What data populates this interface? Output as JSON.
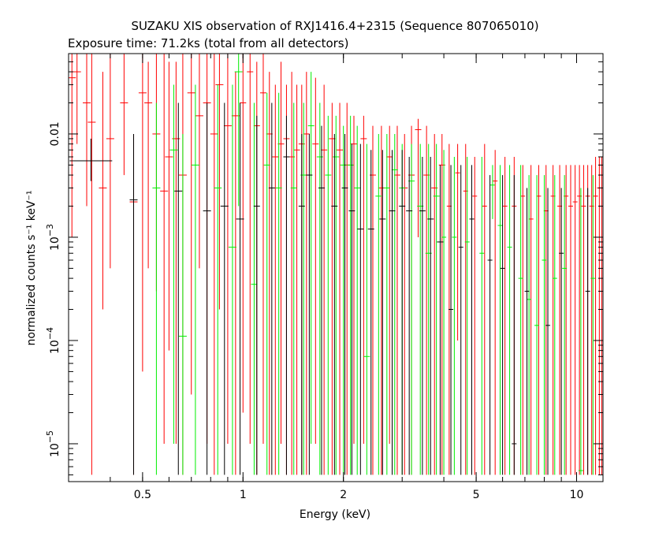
{
  "chart_data": {
    "type": "scatter",
    "title": "SUZAKU XIS observation of RXJ1416.4+2315 (Sequence 807065010)",
    "subtitle": "Exposure time: 71.2ks (total from all detectors)",
    "xlabel": "Energy (keV)",
    "ylabel": "normalized counts s⁻¹ keV⁻¹",
    "x_scale": "log",
    "y_scale": "log",
    "xlim": [
      0.3,
      12
    ],
    "ylim": [
      4.3e-06,
      0.06
    ],
    "x_ticks": [
      {
        "value": 0.5,
        "label": "0.5"
      },
      {
        "value": 1,
        "label": "1"
      },
      {
        "value": 2,
        "label": "2"
      },
      {
        "value": 5,
        "label": "5"
      },
      {
        "value": 10,
        "label": "10"
      }
    ],
    "y_ticks": [
      {
        "value": 0.01,
        "base": "0.01",
        "exp": ""
      },
      {
        "value": 0.001,
        "base": "10",
        "exp": "−3"
      },
      {
        "value": 0.0001,
        "base": "10",
        "exp": "−4"
      },
      {
        "value": 1e-05,
        "base": "10",
        "exp": "−5"
      }
    ],
    "grid": false,
    "legend": "none",
    "series": [
      {
        "color": "#ff0000",
        "points": [
          [
            0.307,
            0.035,
            0.001,
            0.06
          ],
          [
            0.318,
            0.04,
            0.008,
            0.06
          ],
          [
            0.34,
            0.02,
            0.002,
            0.06
          ],
          [
            0.352,
            0.013,
            5e-06,
            0.06
          ],
          [
            0.38,
            0.003,
            0.0002,
            0.04
          ],
          [
            0.4,
            0.009,
            0.0005,
            0.06
          ],
          [
            0.44,
            0.02,
            0.004,
            0.06
          ],
          [
            0.47,
            0.0022,
            5e-06,
            0.01
          ],
          [
            0.5,
            0.025,
            5e-05,
            0.06
          ],
          [
            0.52,
            0.02,
            0.0005,
            0.05
          ],
          [
            0.55,
            0.01,
            0.0003,
            0.06
          ],
          [
            0.58,
            0.0028,
            1e-05,
            0.06
          ],
          [
            0.6,
            0.006,
            8e-05,
            0.05
          ],
          [
            0.63,
            0.009,
            1e-05,
            0.05
          ],
          [
            0.66,
            0.004,
            5e-06,
            0.06
          ],
          [
            0.7,
            0.025,
            3e-05,
            0.06
          ],
          [
            0.74,
            0.015,
            0.0005,
            0.06
          ],
          [
            0.78,
            0.02,
            1e-05,
            0.06
          ],
          [
            0.82,
            0.01,
            5e-06,
            0.06
          ],
          [
            0.85,
            0.03,
            0.0002,
            0.06
          ],
          [
            0.9,
            0.012,
            1e-05,
            0.06
          ],
          [
            0.95,
            0.015,
            5e-06,
            0.04
          ],
          [
            1.0,
            0.02,
            2e-05,
            0.06
          ],
          [
            1.05,
            0.04,
            1e-05,
            0.06
          ],
          [
            1.1,
            0.012,
            5e-06,
            0.05
          ],
          [
            1.15,
            0.025,
            1e-05,
            0.06
          ],
          [
            1.2,
            0.01,
            5e-06,
            0.04
          ],
          [
            1.25,
            0.006,
            5e-06,
            0.03
          ],
          [
            1.3,
            0.008,
            1e-05,
            0.05
          ],
          [
            1.35,
            0.009,
            5e-06,
            0.03
          ],
          [
            1.4,
            0.006,
            5e-06,
            0.04
          ],
          [
            1.45,
            0.007,
            5e-06,
            0.03
          ],
          [
            1.5,
            0.008,
            5e-06,
            0.03
          ],
          [
            1.55,
            0.01,
            5e-06,
            0.04
          ],
          [
            1.65,
            0.008,
            1e-05,
            0.035
          ],
          [
            1.75,
            0.007,
            5e-06,
            0.03
          ],
          [
            1.85,
            0.009,
            5e-06,
            0.02
          ],
          [
            1.95,
            0.007,
            5e-06,
            0.02
          ],
          [
            2.05,
            0.005,
            5e-06,
            0.02
          ],
          [
            2.15,
            0.008,
            1e-05,
            0.015
          ],
          [
            2.3,
            0.009,
            1e-05,
            0.015
          ],
          [
            2.45,
            0.004,
            5e-06,
            0.012
          ],
          [
            2.6,
            0.003,
            5e-06,
            0.012
          ],
          [
            2.75,
            0.006,
            1e-05,
            0.012
          ],
          [
            2.9,
            0.004,
            5e-06,
            0.012
          ],
          [
            3.05,
            0.003,
            5e-06,
            0.01
          ],
          [
            3.2,
            0.004,
            5e-06,
            0.012
          ],
          [
            3.35,
            0.011,
            0.001,
            0.014
          ],
          [
            3.55,
            0.004,
            5e-06,
            0.012
          ],
          [
            3.75,
            0.003,
            5e-06,
            0.01
          ],
          [
            3.95,
            0.005,
            5e-06,
            0.01
          ],
          [
            4.15,
            0.002,
            5e-06,
            0.008
          ],
          [
            4.4,
            0.0042,
            0.0001,
            0.008
          ],
          [
            4.65,
            0.0028,
            5e-06,
            0.008
          ],
          [
            4.95,
            0.0025,
            5e-06,
            0.006
          ],
          [
            5.3,
            0.002,
            5e-06,
            0.008
          ],
          [
            5.7,
            0.0035,
            5e-06,
            0.007
          ],
          [
            6.1,
            0.002,
            5e-06,
            0.006
          ],
          [
            6.5,
            0.002,
            5e-06,
            0.006
          ],
          [
            6.9,
            0.0025,
            5e-06,
            0.005
          ],
          [
            7.3,
            0.0015,
            5e-06,
            0.005
          ],
          [
            7.7,
            0.0025,
            5e-06,
            0.005
          ],
          [
            8.1,
            0.0018,
            5e-06,
            0.005
          ],
          [
            8.5,
            0.0025,
            5e-06,
            0.005
          ],
          [
            8.9,
            0.002,
            5e-06,
            0.005
          ],
          [
            9.3,
            0.0025,
            5e-06,
            0.005
          ],
          [
            9.6,
            0.002,
            5e-06,
            0.005
          ],
          [
            9.9,
            0.0022,
            5e-06,
            0.005
          ],
          [
            10.2,
            0.0025,
            5e-06,
            0.005
          ],
          [
            10.5,
            0.002,
            5e-06,
            0.005
          ],
          [
            10.8,
            0.0025,
            5e-06,
            0.005
          ],
          [
            11.1,
            0.002,
            5e-06,
            0.005
          ],
          [
            11.4,
            0.0025,
            5e-06,
            0.006
          ],
          [
            11.7,
            0.003,
            5e-06,
            0.006
          ],
          [
            11.9,
            0.002,
            5e-06,
            0.006
          ]
        ]
      },
      {
        "color": "#00ee00",
        "points": [
          [
            0.55,
            0.003,
            5e-06,
            0.02
          ],
          [
            0.62,
            0.007,
            1e-05,
            0.03
          ],
          [
            0.66,
            0.00011,
            5e-06,
            0.01
          ],
          [
            0.72,
            0.005,
            5e-06,
            0.03
          ],
          [
            0.84,
            0.003,
            5e-06,
            0.03
          ],
          [
            0.93,
            0.0008,
            5e-06,
            0.03
          ],
          [
            0.97,
            0.04,
            0.002,
            0.06
          ],
          [
            1.08,
            0.00035,
            5e-06,
            0.02
          ],
          [
            1.18,
            0.005,
            5e-06,
            0.025
          ],
          [
            1.28,
            0.003,
            5e-06,
            0.025
          ],
          [
            1.42,
            0.003,
            5e-06,
            0.02
          ],
          [
            1.52,
            0.004,
            5e-06,
            0.02
          ],
          [
            1.6,
            0.012,
            1e-05,
            0.04
          ],
          [
            1.7,
            0.006,
            5e-06,
            0.02
          ],
          [
            1.8,
            0.004,
            5e-06,
            0.015
          ],
          [
            1.9,
            0.006,
            5e-06,
            0.015
          ],
          [
            2.0,
            0.005,
            5e-06,
            0.012
          ],
          [
            2.1,
            0.005,
            5e-06,
            0.015
          ],
          [
            2.2,
            0.003,
            5e-06,
            0.012
          ],
          [
            2.35,
            7e-05,
            5e-06,
            0.008
          ],
          [
            2.55,
            0.0025,
            5e-06,
            0.01
          ],
          [
            2.7,
            0.003,
            5e-06,
            0.01
          ],
          [
            2.85,
            0.0045,
            5e-06,
            0.01
          ],
          [
            3.0,
            0.003,
            5e-06,
            0.008
          ],
          [
            3.2,
            0.0035,
            5e-06,
            0.008
          ],
          [
            3.4,
            0.002,
            5e-06,
            0.008
          ],
          [
            3.6,
            0.0007,
            5e-06,
            0.008
          ],
          [
            3.8,
            0.0025,
            5e-06,
            0.008
          ],
          [
            4.0,
            0.001,
            5e-06,
            0.007
          ],
          [
            4.3,
            0.001,
            5e-06,
            0.006
          ],
          [
            4.7,
            0.0009,
            5e-06,
            0.006
          ],
          [
            5.2,
            0.0007,
            5e-06,
            0.006
          ],
          [
            5.6,
            0.0032,
            0.0015,
            0.005
          ],
          [
            5.9,
            0.0013,
            5e-06,
            0.005
          ],
          [
            6.3,
            0.0008,
            5e-06,
            0.005
          ],
          [
            6.8,
            0.0004,
            5e-06,
            0.005
          ],
          [
            7.2,
            0.00025,
            5e-06,
            0.004
          ],
          [
            7.6,
            0.00014,
            5e-06,
            0.004
          ],
          [
            8.0,
            0.0006,
            5e-06,
            0.004
          ],
          [
            8.6,
            0.0004,
            5e-06,
            0.004
          ],
          [
            9.2,
            0.0005,
            5e-06,
            0.004
          ],
          [
            10.3,
            5.5e-06,
            5e-06,
            0.003
          ],
          [
            11.2,
            0.0004,
            5e-06,
            0.004
          ]
        ]
      },
      {
        "color": "#000000",
        "points": [
          [
            0.35,
            0.0055,
            0.0035,
            0.009
          ],
          [
            0.47,
            0.0023,
            5e-06,
            0.01
          ],
          [
            0.64,
            0.0028,
            5e-06,
            0.02
          ],
          [
            0.78,
            0.0018,
            5e-06,
            0.02
          ],
          [
            0.88,
            0.002,
            5e-06,
            0.02
          ],
          [
            0.98,
            0.0015,
            5e-06,
            0.02
          ],
          [
            1.1,
            0.002,
            5e-06,
            0.015
          ],
          [
            1.22,
            0.003,
            5e-06,
            0.02
          ],
          [
            1.35,
            0.006,
            5e-06,
            0.015
          ],
          [
            1.5,
            0.002,
            5e-06,
            0.01
          ],
          [
            1.58,
            0.004,
            5e-06,
            0.01
          ],
          [
            1.72,
            0.003,
            5e-06,
            0.012
          ],
          [
            1.88,
            0.002,
            5e-06,
            0.01
          ],
          [
            2.02,
            0.003,
            5e-06,
            0.01
          ],
          [
            2.12,
            0.0018,
            5e-06,
            0.008
          ],
          [
            2.25,
            0.0012,
            5e-06,
            0.008
          ],
          [
            2.42,
            0.0012,
            5e-06,
            0.007
          ],
          [
            2.62,
            0.0015,
            5e-06,
            0.007
          ],
          [
            2.8,
            0.0018,
            5e-06,
            0.007
          ],
          [
            3.0,
            0.002,
            5e-06,
            0.007
          ],
          [
            3.15,
            0.0018,
            5e-06,
            0.006
          ],
          [
            3.45,
            0.0018,
            5e-06,
            0.006
          ],
          [
            3.65,
            0.0015,
            5e-06,
            0.006
          ],
          [
            3.9,
            0.0009,
            5e-06,
            0.005
          ],
          [
            4.2,
            0.0002,
            5e-06,
            0.005
          ],
          [
            4.5,
            0.0008,
            5e-06,
            0.005
          ],
          [
            4.85,
            0.0015,
            5e-06,
            0.005
          ],
          [
            5.5,
            0.0006,
            5e-06,
            0.004
          ],
          [
            6.0,
            0.0005,
            5e-06,
            0.004
          ],
          [
            6.5,
            1e-05,
            5e-06,
            0.004
          ],
          [
            7.1,
            0.0003,
            5e-06,
            0.003
          ],
          [
            8.2,
            0.00014,
            5e-06,
            0.003
          ],
          [
            9.0,
            0.0007,
            5e-06,
            0.003
          ],
          [
            10.8,
            0.0003,
            5e-06,
            0.003
          ]
        ]
      }
    ]
  }
}
